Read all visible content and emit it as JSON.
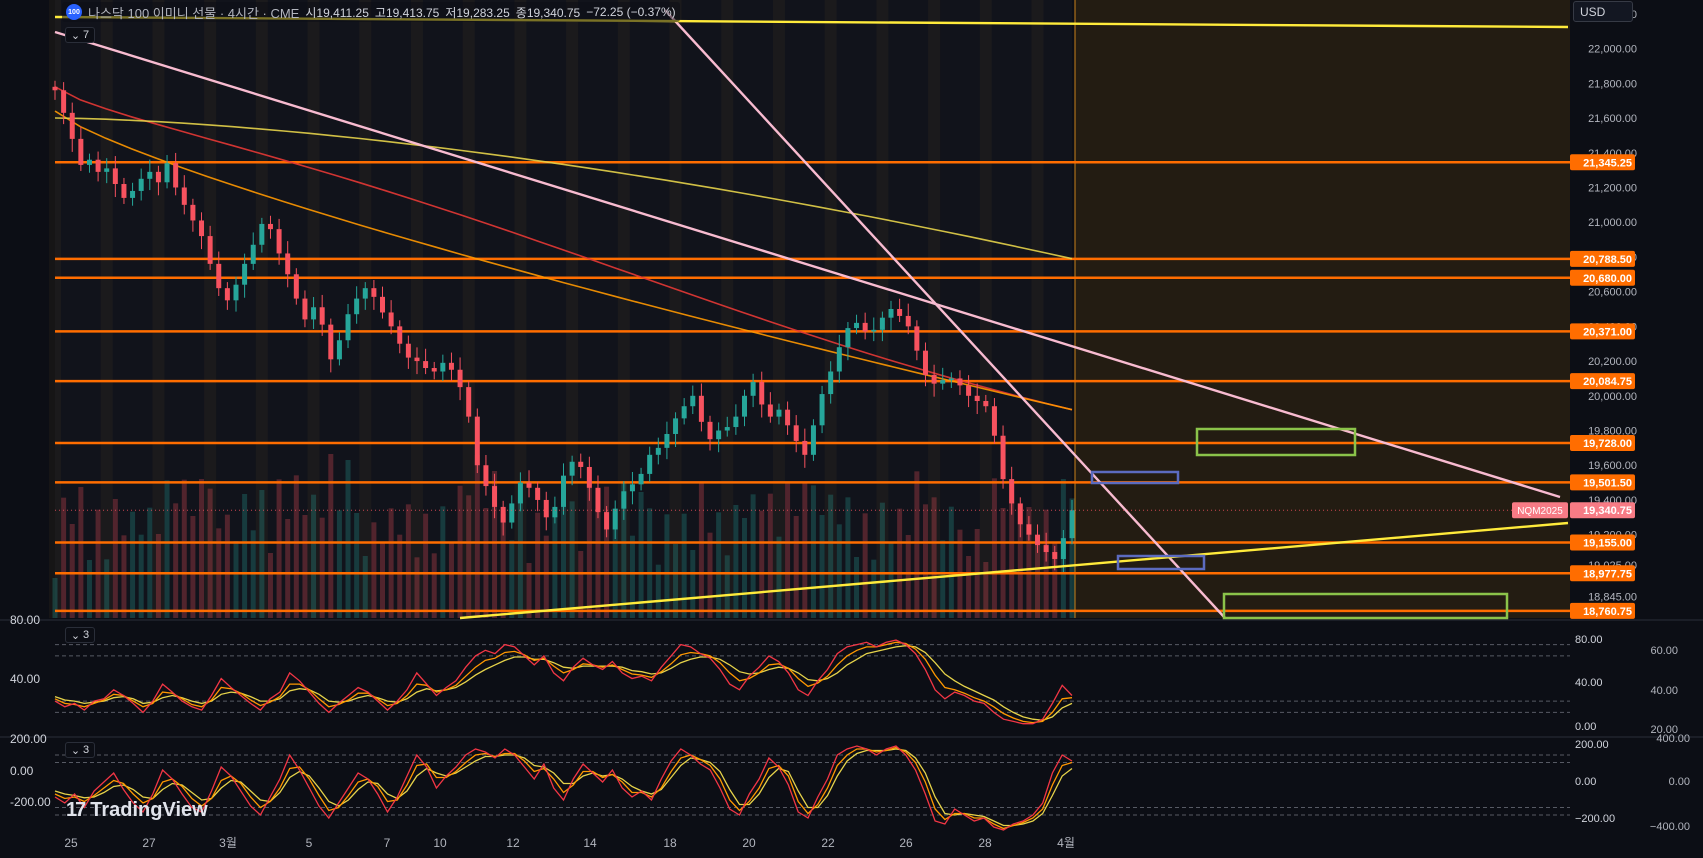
{
  "header": {
    "symbol_badge": "100",
    "title": "나스닥 100 이미니 선물 · 4시간 · CME",
    "open": "시19,411.25",
    "high": "고19,413.75",
    "low": "저19,283.25",
    "close": "종19,340.75",
    "change": "−72.25 (−0.37%)",
    "currency": "USD"
  },
  "panes": {
    "main_toggle": "7",
    "rsi_toggle": "3",
    "cci_toggle": "3"
  },
  "watermark": "TradingView",
  "colors": {
    "background": "#0c0e15",
    "candle_up": "#26a69a",
    "candle_down": "#f7525f",
    "level": "#ff6d00",
    "trendline_pink": "#f8bbd0",
    "trendline_yellow": "#ffeb3b",
    "zone_green": "#8bc34a",
    "zone_blue": "#5c6bc0",
    "ma_red": "#e53935",
    "ma_orange": "#ff9800",
    "ma_yellow": "#e6d34a"
  },
  "chart_data": [
    {
      "type": "candlestick",
      "title": "나스닥 100 이미니 선물 · 4시간 · CME",
      "currency": "USD",
      "x_ticks": [
        "25",
        "27",
        "3월",
        "5",
        "7",
        "10",
        "12",
        "14",
        "18",
        "20",
        "22",
        "26",
        "28",
        "4월"
      ],
      "y_ticks": [
        22200,
        22000,
        21800,
        21600,
        21400,
        21200,
        21000,
        20800,
        20600,
        20400,
        20200,
        20000,
        19800,
        19600,
        19400,
        19200,
        19025,
        18845
      ],
      "y_tick_labels": [
        "22,200.00",
        "22,000.00",
        "21,800.00",
        "21,600.00",
        "21,400.00",
        "21,200.00",
        "21,000.00",
        "20,800.00",
        "20,600.00",
        "20,400.00",
        "20,200.00",
        "20,000.00",
        "19,800.00",
        "19,600.00",
        "19,400.00",
        "19,200.00",
        "19,025.00",
        "18,845.00"
      ],
      "ylim": [
        18720,
        22280
      ],
      "horizontal_levels": [
        {
          "value": 21345.25,
          "label": "21,345.25"
        },
        {
          "value": 20788.5,
          "label": "20,788.50"
        },
        {
          "value": 20680.0,
          "label": "20,680.00"
        },
        {
          "value": 20371.0,
          "label": "20,371.00"
        },
        {
          "value": 20084.75,
          "label": "20,084.75"
        },
        {
          "value": 19728.0,
          "label": "19,728.00"
        },
        {
          "value": 19501.5,
          "label": "19,501.50"
        },
        {
          "value": 19155.0,
          "label": "19,155.00"
        },
        {
          "value": 18977.75,
          "label": "18,977.75"
        },
        {
          "value": 18760.75,
          "label": "18,760.75"
        }
      ],
      "last_price": {
        "value": 19340.75,
        "label": "19,340.75",
        "tag": "NQM2025"
      },
      "close_series": [
        21760,
        21630,
        21480,
        21330,
        21360,
        21290,
        21310,
        21220,
        21140,
        21180,
        21250,
        21290,
        21230,
        21340,
        21200,
        21100,
        21010,
        20920,
        20760,
        20620,
        20550,
        20640,
        20760,
        20870,
        20990,
        20960,
        20820,
        20700,
        20560,
        20440,
        20510,
        20410,
        20210,
        20320,
        20470,
        20560,
        20620,
        20570,
        20480,
        20400,
        20300,
        20220,
        20200,
        20160,
        20140,
        20190,
        20150,
        20050,
        19880,
        19600,
        19480,
        19360,
        19270,
        19380,
        19500,
        19470,
        19400,
        19300,
        19360,
        19540,
        19620,
        19590,
        19470,
        19330,
        19230,
        19350,
        19450,
        19490,
        19550,
        19660,
        19700,
        19780,
        19870,
        19940,
        20000,
        19850,
        19750,
        19800,
        19820,
        19880,
        20000,
        20080,
        19950,
        19880,
        19920,
        19830,
        19740,
        19660,
        19830,
        20010,
        20140,
        20280,
        20390,
        20420,
        20370,
        20380,
        20450,
        20500,
        20460,
        20400,
        20260,
        20120,
        20070,
        20090,
        20100,
        20060,
        20000,
        19970,
        19940,
        19770,
        19520,
        19380,
        19260,
        19200,
        19140,
        19100,
        19060,
        19180,
        19340.75
      ],
      "moving_averages": [
        {
          "start": 21780,
          "end": 19920
        },
        {
          "start": 21640,
          "end": 19920
        },
        {
          "start": 21600,
          "end": 20790
        }
      ]
    },
    {
      "type": "line",
      "indicator_toggle": "3",
      "y_ticks_left": [
        "80.00",
        "40.00"
      ],
      "y_ticks_right": [
        "80.00",
        "40.00",
        "0.00"
      ],
      "y_ticks_far": [
        "60.00",
        "40.00",
        "20.00"
      ],
      "ylim": [
        0,
        100
      ],
      "reference_lines": [
        80,
        70,
        30,
        20
      ],
      "series_a": [
        30,
        25,
        28,
        22,
        30,
        32,
        40,
        35,
        28,
        20,
        30,
        45,
        38,
        30,
        25,
        22,
        35,
        50,
        42,
        35,
        28,
        22,
        32,
        38,
        55,
        48,
        38,
        28,
        20,
        28,
        35,
        42,
        38,
        30,
        22,
        30,
        40,
        55,
        45,
        35,
        42,
        48,
        60,
        70,
        75,
        72,
        80,
        78,
        70,
        62,
        70,
        55,
        48,
        60,
        68,
        62,
        58,
        65,
        55,
        50,
        52,
        48,
        60,
        70,
        80,
        78,
        72,
        68,
        58,
        45,
        40,
        52,
        60,
        70,
        65,
        55,
        40,
        35,
        48,
        58,
        72,
        78,
        80,
        82,
        78,
        82,
        84,
        80,
        72,
        58,
        40,
        32,
        38,
        35,
        30,
        28,
        20,
        14,
        12,
        10,
        10,
        14,
        28,
        44,
        35
      ],
      "series_b": [
        32,
        28,
        27,
        25,
        28,
        31,
        36,
        35,
        30,
        25,
        28,
        38,
        37,
        32,
        27,
        25,
        31,
        42,
        41,
        37,
        31,
        26,
        29,
        34,
        45,
        45,
        40,
        32,
        25,
        27,
        31,
        37,
        37,
        32,
        26,
        28,
        35,
        45,
        44,
        38,
        40,
        44,
        52,
        60,
        66,
        68,
        73,
        74,
        71,
        66,
        68,
        61,
        55,
        58,
        63,
        62,
        60,
        62,
        58,
        54,
        53,
        51,
        56,
        63,
        71,
        73,
        72,
        70,
        64,
        55,
        48,
        50,
        55,
        62,
        63,
        59,
        50,
        43,
        46,
        52,
        62,
        70,
        75,
        78,
        78,
        80,
        82,
        81,
        76,
        67,
        53,
        42,
        40,
        37,
        33,
        30,
        25,
        19,
        15,
        12,
        11,
        12,
        20,
        32,
        33
      ],
      "series_c": [
        34,
        31,
        30,
        28,
        29,
        30,
        33,
        34,
        32,
        28,
        29,
        33,
        35,
        33,
        30,
        28,
        30,
        36,
        38,
        37,
        34,
        30,
        30,
        32,
        39,
        41,
        40,
        36,
        30,
        29,
        30,
        33,
        35,
        33,
        30,
        29,
        32,
        38,
        41,
        39,
        40,
        42,
        47,
        53,
        58,
        62,
        66,
        69,
        69,
        67,
        67,
        64,
        60,
        59,
        61,
        61,
        61,
        61,
        60,
        57,
        56,
        54,
        55,
        59,
        64,
        67,
        69,
        69,
        67,
        62,
        56,
        54,
        55,
        58,
        60,
        59,
        55,
        49,
        48,
        50,
        55,
        62,
        67,
        72,
        74,
        76,
        78,
        79,
        78,
        73,
        64,
        54,
        48,
        43,
        39,
        35,
        31,
        25,
        20,
        16,
        14,
        13,
        16,
        24,
        28
      ]
    },
    {
      "type": "line",
      "indicator_toggle": "3",
      "y_ticks_left": [
        "200.00",
        "0.00",
        "-200.00"
      ],
      "y_ticks_right": [
        "200.00",
        "0.00",
        "−200.00"
      ],
      "y_ticks_far": [
        "400.00",
        "0.00",
        "−400.00"
      ],
      "ylim": [
        -300,
        300
      ],
      "reference_lines": [
        200,
        150,
        -150,
        -200
      ],
      "series_a": [
        -80,
        -120,
        -60,
        -150,
        -40,
        20,
        80,
        -30,
        -120,
        -180,
        -60,
        100,
        40,
        -60,
        -150,
        -180,
        -40,
        120,
        60,
        -40,
        -140,
        -200,
        -80,
        40,
        200,
        100,
        -20,
        -140,
        -220,
        -120,
        -20,
        80,
        40,
        -60,
        -180,
        -80,
        60,
        200,
        120,
        -20,
        60,
        120,
        200,
        240,
        220,
        180,
        240,
        200,
        120,
        40,
        140,
        -20,
        -100,
        40,
        140,
        80,
        20,
        100,
        -20,
        -80,
        -40,
        -100,
        40,
        160,
        240,
        200,
        140,
        100,
        -20,
        -160,
        -200,
        -60,
        40,
        180,
        120,
        0,
        -180,
        -220,
        -80,
        40,
        200,
        240,
        260,
        240,
        200,
        240,
        260,
        200,
        100,
        -60,
        -240,
        -260,
        -160,
        -200,
        -240,
        -220,
        -280,
        -300,
        -260,
        -240,
        -200,
        -120,
        80,
        200,
        160
      ],
      "series_b": [
        -60,
        -90,
        -80,
        -110,
        -70,
        -20,
        30,
        10,
        -60,
        -120,
        -90,
        20,
        40,
        -10,
        -90,
        -140,
        -90,
        30,
        60,
        10,
        -80,
        -150,
        -110,
        -20,
        110,
        120,
        40,
        -70,
        -170,
        -150,
        -70,
        20,
        40,
        -10,
        -110,
        -100,
        0,
        130,
        140,
        50,
        50,
        90,
        150,
        200,
        210,
        190,
        210,
        210,
        160,
        90,
        110,
        40,
        -50,
        0,
        90,
        90,
        50,
        70,
        20,
        -50,
        -50,
        -80,
        -20,
        90,
        180,
        200,
        170,
        130,
        40,
        -100,
        -170,
        -110,
        -20,
        110,
        130,
        60,
        -110,
        -190,
        -130,
        -20,
        130,
        200,
        240,
        240,
        220,
        230,
        250,
        220,
        150,
        20,
        -160,
        -230,
        -190,
        -190,
        -220,
        -220,
        -260,
        -290,
        -270,
        -250,
        -220,
        -160,
        0,
        130,
        150
      ],
      "series_c": [
        -40,
        -60,
        -70,
        -85,
        -80,
        -50,
        -10,
        0,
        -30,
        -80,
        -90,
        -30,
        10,
        0,
        -50,
        -100,
        -90,
        -20,
        30,
        20,
        -40,
        -100,
        -110,
        -50,
        50,
        90,
        60,
        -20,
        -110,
        -140,
        -100,
        -30,
        20,
        10,
        -60,
        -90,
        -40,
        60,
        110,
        80,
        60,
        80,
        120,
        160,
        190,
        190,
        200,
        200,
        180,
        130,
        120,
        80,
        10,
        10,
        60,
        80,
        60,
        70,
        40,
        -10,
        -40,
        -60,
        -30,
        50,
        130,
        180,
        170,
        150,
        90,
        -30,
        -130,
        -130,
        -60,
        50,
        110,
        90,
        -40,
        -150,
        -150,
        -70,
        60,
        160,
        210,
        230,
        230,
        230,
        240,
        230,
        180,
        80,
        -80,
        -190,
        -200,
        -190,
        -200,
        -210,
        -240,
        -270,
        -270,
        -260,
        -240,
        -190,
        -70,
        60,
        110
      ]
    }
  ]
}
